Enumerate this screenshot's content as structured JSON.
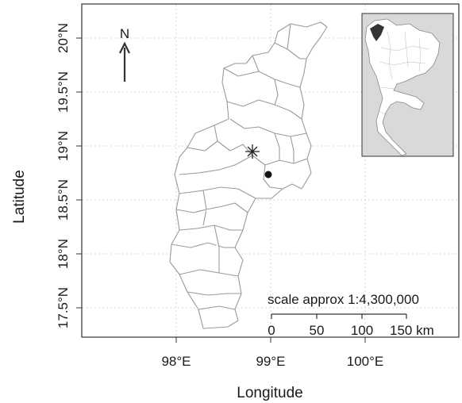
{
  "map": {
    "axes": {
      "xlabel": "Longitude",
      "ylabel": "Latitude",
      "x_ticks": [
        "98°E",
        "99°E",
        "100°E"
      ],
      "y_ticks": [
        "17.5°N",
        "18°N",
        "18.5°N",
        "19°N",
        "19.5°N",
        "20°N"
      ]
    },
    "north_arrow": {
      "label": "N"
    },
    "scale_bar": {
      "caption": "scale approx 1:4,300,000",
      "ticks": [
        "0",
        "50",
        "100",
        "150 km"
      ]
    },
    "markers": [
      {
        "kind": "asterisk",
        "lon": 98.83,
        "lat": 18.95
      },
      {
        "kind": "dot",
        "lon": 98.98,
        "lat": 18.73
      }
    ],
    "colors": {
      "boundary": "#9a9a9a",
      "grid": "#d4d4d4",
      "inset_land": "#ffffff",
      "inset_sea": "#d9d9d9",
      "inset_highlight": "#333333"
    }
  }
}
